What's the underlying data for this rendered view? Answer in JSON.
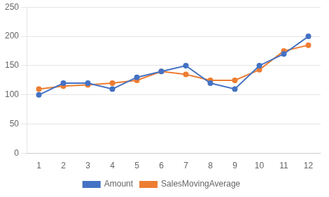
{
  "chart_data": {
    "type": "line",
    "x": [
      1,
      2,
      3,
      4,
      5,
      6,
      7,
      8,
      9,
      10,
      11,
      12
    ],
    "series": [
      {
        "name": "Amount",
        "color": "#4472C4",
        "marker": "circle",
        "values": [
          100,
          120,
          120,
          110,
          130,
          140,
          150,
          120,
          110,
          150,
          170,
          200
        ]
      },
      {
        "name": "SalesMovingAverage",
        "color": "#ED7D31",
        "marker": "circle",
        "values": [
          110,
          115,
          117,
          120,
          125,
          140,
          135,
          125,
          125,
          143,
          175,
          185
        ]
      }
    ],
    "xlim": [
      0.5,
      12.5
    ],
    "xticks": [
      1,
      2,
      3,
      4,
      5,
      6,
      7,
      8,
      9,
      10,
      11,
      12
    ],
    "ylim": [
      0,
      250
    ],
    "yticks": [
      0,
      50,
      100,
      150,
      200,
      250
    ],
    "grid": true,
    "legend": "bottom"
  }
}
